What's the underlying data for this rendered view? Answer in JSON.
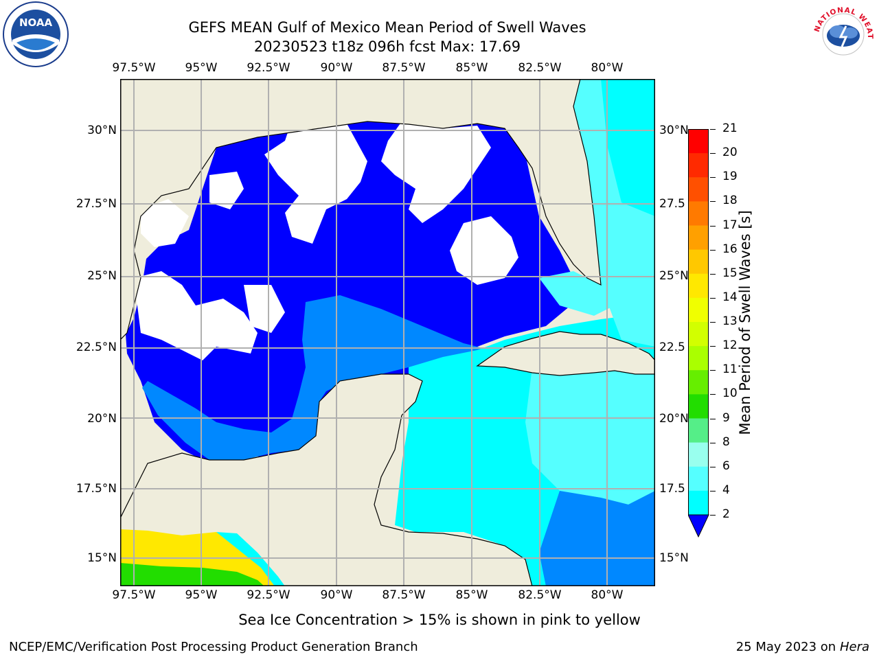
{
  "title_line1": "GEFS MEAN Gulf of Mexico Mean Period of Swell Waves",
  "title_line2": "20230523 t18z 096h fcst   Max: 17.69",
  "lon_ticks": [
    "97.5°W",
    "95°W",
    "92.5°W",
    "90°W",
    "87.5°W",
    "85°W",
    "82.5°W",
    "80°W"
  ],
  "lat_ticks_left": [
    "30°N",
    "27.5°N",
    "25°N",
    "22.5°N",
    "20°N",
    "17.5°N",
    "15°N"
  ],
  "lat_ticks_right": [
    "30°N",
    "27.5",
    "25°N",
    "22.5",
    "20°N",
    "17.5",
    "15°N"
  ],
  "colorbar": {
    "label": "Mean Period of Swell Waves [s]",
    "ticks": [
      "21",
      "20",
      "19",
      "18",
      "17",
      "16",
      "15",
      "14",
      "13",
      "12",
      "11",
      "10",
      "9",
      "8",
      "6",
      "4",
      "2"
    ],
    "colors": [
      "#ff0000",
      "#ff2a00",
      "#ff5000",
      "#ff7a00",
      "#ffa000",
      "#ffc800",
      "#ffe800",
      "#f0ff00",
      "#d2ff00",
      "#aaff00",
      "#66ee00",
      "#22dd00",
      "#55ee88",
      "#99ffee",
      "#55ffff",
      "#00ffff",
      "#0088ff"
    ],
    "under_color": "#0000ff"
  },
  "subtitle": "Sea Ice Concentration > 15% is shown in pink to yellow",
  "footer_left": "NCEP/EMC/Verification Post Processing Product Generation Branch",
  "footer_right_date": "25 May 2023 on",
  "footer_right_host": "Hera",
  "logos": {
    "left": "NOAA",
    "right": "NATIONAL WEATHER SERVICE"
  },
  "map_colors": {
    "land": "#efeddc",
    "deep_blue": "#0000ff",
    "mid_blue": "#0088ff",
    "cyan": "#00ffff",
    "light_cyan": "#55ffff",
    "gulf_white": "#ffffff"
  }
}
